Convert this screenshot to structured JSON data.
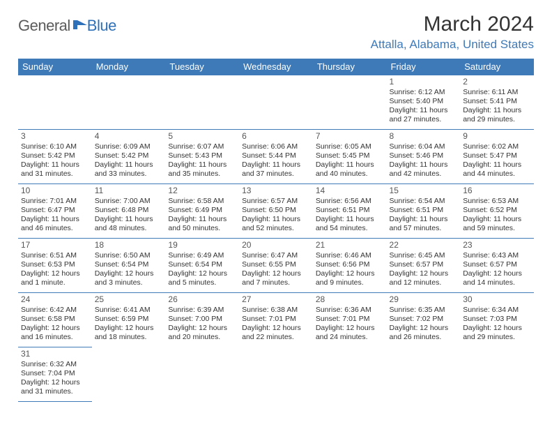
{
  "logo": {
    "text1": "General",
    "text2": "Blue"
  },
  "title": "March 2024",
  "location": "Attalla, Alabama, United States",
  "colors": {
    "header_bg": "#3f7ab8",
    "header_fg": "#ffffff",
    "border": "#3f7ab8",
    "title_color": "#333333",
    "location_color": "#3f7ab8"
  },
  "weekdays": [
    "Sunday",
    "Monday",
    "Tuesday",
    "Wednesday",
    "Thursday",
    "Friday",
    "Saturday"
  ],
  "weeks": [
    [
      null,
      null,
      null,
      null,
      null,
      {
        "n": "1",
        "sr": "Sunrise: 6:12 AM",
        "ss": "Sunset: 5:40 PM",
        "dl": "Daylight: 11 hours and 27 minutes."
      },
      {
        "n": "2",
        "sr": "Sunrise: 6:11 AM",
        "ss": "Sunset: 5:41 PM",
        "dl": "Daylight: 11 hours and 29 minutes."
      }
    ],
    [
      {
        "n": "3",
        "sr": "Sunrise: 6:10 AM",
        "ss": "Sunset: 5:42 PM",
        "dl": "Daylight: 11 hours and 31 minutes."
      },
      {
        "n": "4",
        "sr": "Sunrise: 6:09 AM",
        "ss": "Sunset: 5:42 PM",
        "dl": "Daylight: 11 hours and 33 minutes."
      },
      {
        "n": "5",
        "sr": "Sunrise: 6:07 AM",
        "ss": "Sunset: 5:43 PM",
        "dl": "Daylight: 11 hours and 35 minutes."
      },
      {
        "n": "6",
        "sr": "Sunrise: 6:06 AM",
        "ss": "Sunset: 5:44 PM",
        "dl": "Daylight: 11 hours and 37 minutes."
      },
      {
        "n": "7",
        "sr": "Sunrise: 6:05 AM",
        "ss": "Sunset: 5:45 PM",
        "dl": "Daylight: 11 hours and 40 minutes."
      },
      {
        "n": "8",
        "sr": "Sunrise: 6:04 AM",
        "ss": "Sunset: 5:46 PM",
        "dl": "Daylight: 11 hours and 42 minutes."
      },
      {
        "n": "9",
        "sr": "Sunrise: 6:02 AM",
        "ss": "Sunset: 5:47 PM",
        "dl": "Daylight: 11 hours and 44 minutes."
      }
    ],
    [
      {
        "n": "10",
        "sr": "Sunrise: 7:01 AM",
        "ss": "Sunset: 6:47 PM",
        "dl": "Daylight: 11 hours and 46 minutes."
      },
      {
        "n": "11",
        "sr": "Sunrise: 7:00 AM",
        "ss": "Sunset: 6:48 PM",
        "dl": "Daylight: 11 hours and 48 minutes."
      },
      {
        "n": "12",
        "sr": "Sunrise: 6:58 AM",
        "ss": "Sunset: 6:49 PM",
        "dl": "Daylight: 11 hours and 50 minutes."
      },
      {
        "n": "13",
        "sr": "Sunrise: 6:57 AM",
        "ss": "Sunset: 6:50 PM",
        "dl": "Daylight: 11 hours and 52 minutes."
      },
      {
        "n": "14",
        "sr": "Sunrise: 6:56 AM",
        "ss": "Sunset: 6:51 PM",
        "dl": "Daylight: 11 hours and 54 minutes."
      },
      {
        "n": "15",
        "sr": "Sunrise: 6:54 AM",
        "ss": "Sunset: 6:51 PM",
        "dl": "Daylight: 11 hours and 57 minutes."
      },
      {
        "n": "16",
        "sr": "Sunrise: 6:53 AM",
        "ss": "Sunset: 6:52 PM",
        "dl": "Daylight: 11 hours and 59 minutes."
      }
    ],
    [
      {
        "n": "17",
        "sr": "Sunrise: 6:51 AM",
        "ss": "Sunset: 6:53 PM",
        "dl": "Daylight: 12 hours and 1 minute."
      },
      {
        "n": "18",
        "sr": "Sunrise: 6:50 AM",
        "ss": "Sunset: 6:54 PM",
        "dl": "Daylight: 12 hours and 3 minutes."
      },
      {
        "n": "19",
        "sr": "Sunrise: 6:49 AM",
        "ss": "Sunset: 6:54 PM",
        "dl": "Daylight: 12 hours and 5 minutes."
      },
      {
        "n": "20",
        "sr": "Sunrise: 6:47 AM",
        "ss": "Sunset: 6:55 PM",
        "dl": "Daylight: 12 hours and 7 minutes."
      },
      {
        "n": "21",
        "sr": "Sunrise: 6:46 AM",
        "ss": "Sunset: 6:56 PM",
        "dl": "Daylight: 12 hours and 9 minutes."
      },
      {
        "n": "22",
        "sr": "Sunrise: 6:45 AM",
        "ss": "Sunset: 6:57 PM",
        "dl": "Daylight: 12 hours and 12 minutes."
      },
      {
        "n": "23",
        "sr": "Sunrise: 6:43 AM",
        "ss": "Sunset: 6:57 PM",
        "dl": "Daylight: 12 hours and 14 minutes."
      }
    ],
    [
      {
        "n": "24",
        "sr": "Sunrise: 6:42 AM",
        "ss": "Sunset: 6:58 PM",
        "dl": "Daylight: 12 hours and 16 minutes."
      },
      {
        "n": "25",
        "sr": "Sunrise: 6:41 AM",
        "ss": "Sunset: 6:59 PM",
        "dl": "Daylight: 12 hours and 18 minutes."
      },
      {
        "n": "26",
        "sr": "Sunrise: 6:39 AM",
        "ss": "Sunset: 7:00 PM",
        "dl": "Daylight: 12 hours and 20 minutes."
      },
      {
        "n": "27",
        "sr": "Sunrise: 6:38 AM",
        "ss": "Sunset: 7:01 PM",
        "dl": "Daylight: 12 hours and 22 minutes."
      },
      {
        "n": "28",
        "sr": "Sunrise: 6:36 AM",
        "ss": "Sunset: 7:01 PM",
        "dl": "Daylight: 12 hours and 24 minutes."
      },
      {
        "n": "29",
        "sr": "Sunrise: 6:35 AM",
        "ss": "Sunset: 7:02 PM",
        "dl": "Daylight: 12 hours and 26 minutes."
      },
      {
        "n": "30",
        "sr": "Sunrise: 6:34 AM",
        "ss": "Sunset: 7:03 PM",
        "dl": "Daylight: 12 hours and 29 minutes."
      }
    ],
    [
      {
        "n": "31",
        "sr": "Sunrise: 6:32 AM",
        "ss": "Sunset: 7:04 PM",
        "dl": "Daylight: 12 hours and 31 minutes."
      },
      null,
      null,
      null,
      null,
      null,
      null
    ]
  ]
}
